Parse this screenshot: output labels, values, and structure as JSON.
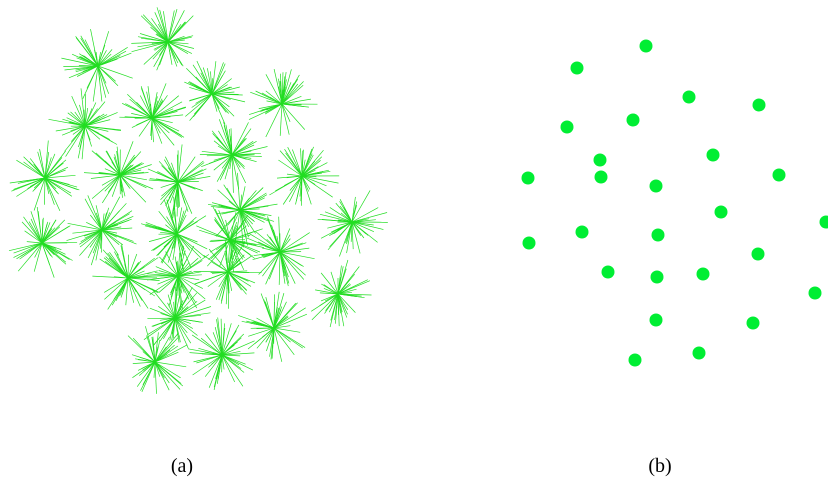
{
  "colors": {
    "spike": "#22dd22",
    "dot": "#00ee33",
    "caption": "#000000",
    "background": "#ffffff"
  },
  "panel_a": {
    "caption": "(a)",
    "spike_count": 26
  },
  "panel_b": {
    "caption": "(b)",
    "dot_count": 26
  }
}
